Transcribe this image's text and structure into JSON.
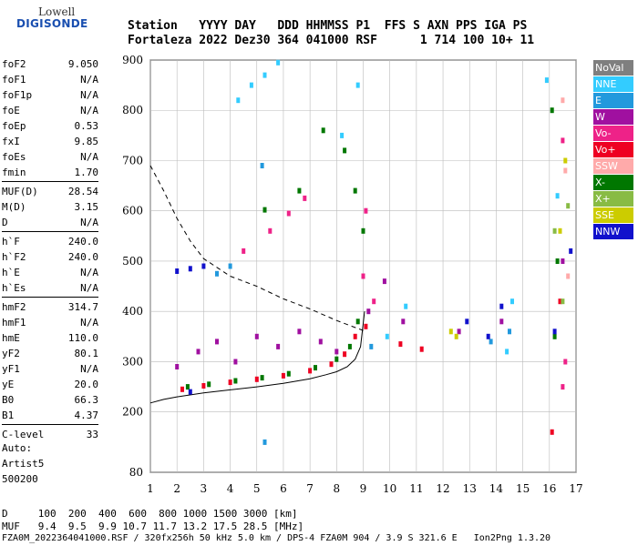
{
  "logo": {
    "line1": "Lowell",
    "line2": "DIGISONDE"
  },
  "header": {
    "line1": "Station   YYYY DAY   DDD HHMMSS P1  FFS S AXN PPS IGA PS",
    "line2": "Fortaleza 2022 Dez30 364 041000 RSF      1 714 100 10+ 11"
  },
  "params": [
    {
      "name": "foF2",
      "value": "9.050"
    },
    {
      "name": "foF1",
      "value": "N/A"
    },
    {
      "name": "foF1p",
      "value": "N/A"
    },
    {
      "name": "foE",
      "value": "N/A"
    },
    {
      "name": "foEp",
      "value": "0.53"
    },
    {
      "name": "fxI",
      "value": "9.85"
    },
    {
      "name": "foEs",
      "value": "N/A"
    },
    {
      "name": "fmin",
      "value": "1.70"
    },
    {
      "name": "MUF(D)",
      "value": "28.54"
    },
    {
      "name": "M(D)",
      "value": "3.15"
    },
    {
      "name": "D",
      "value": "N/A"
    },
    {
      "name": "h`F",
      "value": "240.0"
    },
    {
      "name": "h`F2",
      "value": "240.0"
    },
    {
      "name": "h`E",
      "value": "N/A"
    },
    {
      "name": "h`Es",
      "value": "N/A"
    },
    {
      "name": "hmF2",
      "value": "314.7"
    },
    {
      "name": "hmF1",
      "value": "N/A"
    },
    {
      "name": "hmE",
      "value": "110.0"
    },
    {
      "name": "yF2",
      "value": "80.1"
    },
    {
      "name": "yF1",
      "value": "N/A"
    },
    {
      "name": "yE",
      "value": "20.0"
    },
    {
      "name": "B0",
      "value": "66.3"
    },
    {
      "name": "B1",
      "value": "4.37"
    },
    {
      "name": "C-level",
      "value": "33"
    }
  ],
  "auto": {
    "l1": "Auto:",
    "l2": "Artist5",
    "l3": "500200"
  },
  "legend": [
    {
      "label": "NoVal",
      "color": "#7f7f7f"
    },
    {
      "label": "NNE",
      "color": "#33ccff"
    },
    {
      "label": "E",
      "color": "#2299dd"
    },
    {
      "label": "W",
      "color": "#a010a0"
    },
    {
      "label": "Vo-",
      "color": "#ee2288"
    },
    {
      "label": "Vo+",
      "color": "#ee0022"
    },
    {
      "label": "SSW",
      "color": "#ffaaaa"
    },
    {
      "label": "X-",
      "color": "#007700"
    },
    {
      "label": "X+",
      "color": "#88bb44"
    },
    {
      "label": "SSE",
      "color": "#cccc00"
    },
    {
      "label": "NNW",
      "color": "#1111cc"
    }
  ],
  "bottom": {
    "line1": "D     100  200  400  600  800 1000 1500 3000 [km]",
    "line2": "MUF   9.4  9.5  9.9 10.7 11.7 13.2 17.5 28.5 [MHz]",
    "line3": "FZA0M_2022364041000.RSF / 320fx256h 50 kHz 5.0 km / DPS-4 FZA0M 904 / 3.9 S 321.6 E   Ion2Png 1.3.20"
  },
  "chart_data": {
    "type": "scatter",
    "xlim": [
      1,
      17
    ],
    "ylim": [
      80,
      900
    ],
    "xticks": [
      1,
      2,
      3,
      4,
      5,
      6,
      7,
      8,
      9,
      10,
      11,
      12,
      13,
      14,
      15,
      16,
      17
    ],
    "yticks": [
      80,
      200,
      300,
      400,
      500,
      600,
      700,
      800,
      900
    ],
    "grid": true,
    "series": [
      {
        "name": "X-",
        "color": "#007700",
        "points": [
          [
            2.4,
            250
          ],
          [
            3.2,
            255
          ],
          [
            4.2,
            262
          ],
          [
            5.2,
            268
          ],
          [
            6.2,
            276
          ],
          [
            7.2,
            288
          ],
          [
            8.0,
            305
          ],
          [
            8.5,
            330
          ],
          [
            8.8,
            380
          ],
          [
            9.0,
            560
          ],
          [
            8.7,
            640
          ],
          [
            8.3,
            720
          ],
          [
            7.5,
            760
          ],
          [
            5.3,
            602
          ],
          [
            6.6,
            640
          ],
          [
            16.1,
            800
          ],
          [
            16.3,
            500
          ],
          [
            16.2,
            350
          ]
        ]
      },
      {
        "name": "Vo+",
        "color": "#ee0022",
        "points": [
          [
            2.2,
            245
          ],
          [
            3.0,
            252
          ],
          [
            4.0,
            259
          ],
          [
            5.0,
            265
          ],
          [
            6.0,
            272
          ],
          [
            7.0,
            282
          ],
          [
            7.8,
            295
          ],
          [
            8.3,
            315
          ],
          [
            8.7,
            350
          ],
          [
            9.1,
            370
          ],
          [
            10.4,
            335
          ],
          [
            11.2,
            325
          ],
          [
            16.4,
            420
          ],
          [
            16.1,
            160
          ]
        ]
      },
      {
        "name": "Vo-",
        "color": "#ee2288",
        "points": [
          [
            4.5,
            520
          ],
          [
            5.5,
            560
          ],
          [
            6.2,
            595
          ],
          [
            6.8,
            625
          ],
          [
            9.0,
            470
          ],
          [
            9.1,
            600
          ],
          [
            9.4,
            420
          ],
          [
            16.5,
            740
          ],
          [
            16.6,
            300
          ],
          [
            16.5,
            250
          ]
        ]
      },
      {
        "name": "W",
        "color": "#a010a0",
        "points": [
          [
            2.0,
            290
          ],
          [
            2.8,
            320
          ],
          [
            3.5,
            340
          ],
          [
            4.2,
            300
          ],
          [
            5.0,
            350
          ],
          [
            5.8,
            330
          ],
          [
            6.6,
            360
          ],
          [
            7.4,
            340
          ],
          [
            8.0,
            320
          ],
          [
            9.2,
            400
          ],
          [
            9.8,
            460
          ],
          [
            10.5,
            380
          ],
          [
            12.6,
            360
          ],
          [
            14.2,
            380
          ],
          [
            16.5,
            500
          ]
        ]
      },
      {
        "name": "NNE",
        "color": "#33ccff",
        "points": [
          [
            4.3,
            820
          ],
          [
            4.8,
            850
          ],
          [
            5.3,
            870
          ],
          [
            5.8,
            895
          ],
          [
            8.2,
            750
          ],
          [
            8.8,
            850
          ],
          [
            9.9,
            350
          ],
          [
            10.6,
            410
          ],
          [
            14.4,
            320
          ],
          [
            14.6,
            420
          ],
          [
            15.9,
            860
          ],
          [
            16.3,
            630
          ]
        ]
      },
      {
        "name": "E",
        "color": "#2299dd",
        "points": [
          [
            3.5,
            475
          ],
          [
            4.0,
            490
          ],
          [
            5.2,
            690
          ],
          [
            9.3,
            330
          ],
          [
            13.8,
            340
          ],
          [
            14.5,
            360
          ],
          [
            5.3,
            140
          ]
        ]
      },
      {
        "name": "NNW",
        "color": "#1111cc",
        "points": [
          [
            2.0,
            480
          ],
          [
            2.5,
            485
          ],
          [
            3.0,
            490
          ],
          [
            2.5,
            240
          ],
          [
            12.9,
            380
          ],
          [
            13.7,
            350
          ],
          [
            14.2,
            410
          ],
          [
            16.2,
            360
          ],
          [
            16.8,
            520
          ]
        ]
      },
      {
        "name": "SSE",
        "color": "#cccc00",
        "points": [
          [
            12.3,
            360
          ],
          [
            12.5,
            350
          ],
          [
            16.6,
            700
          ],
          [
            16.4,
            560
          ]
        ]
      },
      {
        "name": "X+",
        "color": "#88bb44",
        "points": [
          [
            16.7,
            610
          ],
          [
            16.2,
            560
          ],
          [
            16.5,
            420
          ]
        ]
      },
      {
        "name": "SSW",
        "color": "#ffaaaa",
        "points": [
          [
            16.6,
            680
          ],
          [
            16.5,
            820
          ],
          [
            16.7,
            470
          ]
        ]
      }
    ],
    "profile_solid": [
      [
        1,
        218
      ],
      [
        1.5,
        225
      ],
      [
        2,
        230
      ],
      [
        3,
        238
      ],
      [
        4,
        244
      ],
      [
        5,
        250
      ],
      [
        6,
        257
      ],
      [
        7,
        266
      ],
      [
        7.6,
        274
      ],
      [
        8,
        280
      ],
      [
        8.4,
        290
      ],
      [
        8.7,
        305
      ],
      [
        8.9,
        330
      ],
      [
        9.05,
        400
      ]
    ],
    "profile_dashed": [
      [
        1,
        690
      ],
      [
        1.5,
        640
      ],
      [
        2,
        585
      ],
      [
        2.5,
        540
      ],
      [
        3,
        505
      ],
      [
        4,
        470
      ],
      [
        5,
        450
      ],
      [
        6,
        425
      ],
      [
        7,
        405
      ],
      [
        8,
        382
      ],
      [
        8.5,
        372
      ],
      [
        9.0,
        362
      ]
    ]
  }
}
